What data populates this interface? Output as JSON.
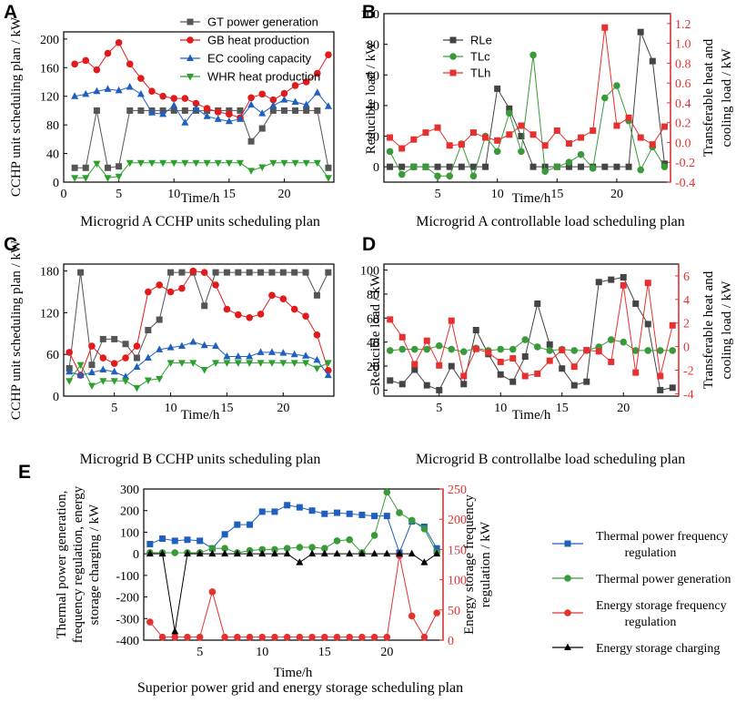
{
  "chart_data": [
    {
      "id": "A",
      "type": "line",
      "label": "A",
      "title": "Microgrid A CCHP units scheduling plan",
      "xlabel": "Time/h",
      "ylabel": "CCHP unit scheduling plan / kW",
      "xlim": [
        0,
        24.5
      ],
      "ylim": [
        0,
        210
      ],
      "xticks": [
        0,
        5,
        10,
        15,
        20
      ],
      "yticks": [
        0,
        40,
        80,
        120,
        160,
        200
      ],
      "legend_position": "top-center",
      "x": [
        1,
        2,
        3,
        4,
        5,
        6,
        7,
        8,
        9,
        10,
        11,
        12,
        13,
        14,
        15,
        16,
        17,
        18,
        19,
        20,
        21,
        22,
        23,
        24
      ],
      "series": [
        {
          "name": "GT power generation",
          "color": "#555555",
          "marker": "square",
          "axis": "left",
          "values": [
            20,
            20,
            100,
            20,
            22,
            100,
            100,
            100,
            100,
            100,
            100,
            100,
            100,
            100,
            100,
            100,
            57,
            75,
            100,
            100,
            100,
            100,
            100,
            20
          ]
        },
        {
          "name": "GB heat production",
          "color": "#e31a1c",
          "marker": "circle",
          "axis": "left",
          "values": [
            165,
            170,
            157,
            180,
            195,
            165,
            145,
            127,
            120,
            117,
            117,
            110,
            103,
            98,
            95,
            90,
            118,
            123,
            115,
            124,
            135,
            140,
            152,
            178
          ]
        },
        {
          "name": "EC cooling capacity",
          "color": "#1f5fbf",
          "marker": "triangle-up",
          "axis": "left",
          "values": [
            120,
            123,
            127,
            130,
            128,
            133,
            123,
            97,
            95,
            107,
            83,
            103,
            92,
            88,
            85,
            88,
            108,
            96,
            107,
            115,
            112,
            108,
            125,
            106
          ]
        },
        {
          "name": "WHR heat production",
          "color": "#2ca02c",
          "marker": "triangle-down",
          "axis": "left",
          "values": [
            6,
            6,
            26,
            6,
            8,
            27,
            27,
            27,
            27,
            27,
            27,
            27,
            27,
            27,
            27,
            27,
            16,
            21,
            27,
            27,
            27,
            27,
            27,
            6
          ]
        }
      ]
    },
    {
      "id": "B",
      "type": "line",
      "label": "B",
      "title": "Microgrid A controllable load scheduling plan",
      "xlabel": "Time/h",
      "ylabel": "Reducible load / kW",
      "y2label": "Transferable heat and cooling load / kW",
      "xlim": [
        0.5,
        24.5
      ],
      "ylim": [
        -10,
        100
      ],
      "y2lim": [
        -0.4,
        1.3
      ],
      "xticks": [
        5,
        10,
        15,
        20
      ],
      "yticks": [
        0,
        20,
        40,
        60,
        80,
        100
      ],
      "y2ticks": [
        -0.4,
        -0.2,
        0.0,
        0.2,
        0.4,
        0.6,
        0.8,
        1.0,
        1.2
      ],
      "y2ticklabels": [
        "-0.4",
        "-0.2",
        "0.0",
        "0.2",
        "0.4",
        "0.6",
        "0.8",
        "1.0",
        "1.2"
      ],
      "legend_position": "top-left",
      "x": [
        1,
        2,
        3,
        4,
        5,
        6,
        7,
        8,
        9,
        10,
        11,
        12,
        13,
        14,
        15,
        16,
        17,
        18,
        19,
        20,
        21,
        22,
        23,
        24
      ],
      "series": [
        {
          "name": "RLe",
          "color": "#444444",
          "marker": "square",
          "axis": "left",
          "values": [
            0,
            0,
            0,
            0,
            0,
            0,
            0,
            0,
            0,
            51,
            38,
            20,
            0,
            0,
            0,
            0,
            0,
            0,
            0,
            0,
            0,
            88,
            69,
            2
          ]
        },
        {
          "name": "TLc",
          "color": "#3a9a3a",
          "marker": "circle",
          "axis": "left",
          "values": [
            10,
            -5,
            0,
            0,
            -6,
            -6,
            15,
            -6,
            20,
            10,
            35,
            10,
            73,
            -3,
            0,
            3,
            8,
            -1,
            45,
            53,
            30,
            -2,
            13,
            0
          ]
        },
        {
          "name": "TLh",
          "color": "#e63030",
          "marker": "square",
          "axis": "right",
          "values": [
            0.05,
            -0.06,
            0.03,
            0.1,
            0.15,
            -0.03,
            -0.02,
            0.1,
            0.05,
            0.02,
            0.08,
            0.17,
            0.08,
            -0.03,
            0.12,
            -0.01,
            0.05,
            0.12,
            1.16,
            0.17,
            0.25,
            0.05,
            -0.02,
            0.16
          ]
        }
      ]
    },
    {
      "id": "C",
      "type": "line",
      "label": "C",
      "title": "Microgrid B CCHP units scheduling plan",
      "xlabel": "Time/h",
      "ylabel": "CCHP unit scheduling plan / kW",
      "xlim": [
        0.5,
        24.5
      ],
      "ylim": [
        0,
        190
      ],
      "xticks": [
        5,
        10,
        15,
        20
      ],
      "yticks": [
        0,
        60,
        120,
        180
      ],
      "x": [
        1,
        2,
        3,
        4,
        5,
        6,
        7,
        8,
        9,
        10,
        11,
        12,
        13,
        14,
        15,
        16,
        17,
        18,
        19,
        20,
        21,
        22,
        23,
        24
      ],
      "series": [
        {
          "name": "GT power generation",
          "color": "#555555",
          "marker": "square",
          "axis": "left",
          "values": [
            40,
            178,
            45,
            82,
            82,
            75,
            55,
            95,
            110,
            178,
            178,
            178,
            130,
            178,
            178,
            178,
            178,
            178,
            178,
            178,
            178,
            178,
            145,
            178
          ]
        },
        {
          "name": "GB heat production",
          "color": "#e31a1c",
          "marker": "circle",
          "axis": "left",
          "values": [
            63,
            30,
            72,
            55,
            47,
            55,
            72,
            150,
            160,
            150,
            155,
            180,
            178,
            160,
            125,
            117,
            113,
            118,
            145,
            140,
            125,
            115,
            88,
            37
          ]
        },
        {
          "name": "EC cooling capacity",
          "color": "#1f5fbf",
          "marker": "triangle-up",
          "axis": "left",
          "values": [
            35,
            30,
            34,
            38,
            35,
            28,
            42,
            55,
            67,
            70,
            72,
            78,
            73,
            72,
            57,
            57,
            57,
            63,
            63,
            62,
            60,
            58,
            52,
            30
          ]
        },
        {
          "name": "WHR heat production",
          "color": "#2ca02c",
          "marker": "triangle-down",
          "axis": "left",
          "values": [
            22,
            45,
            15,
            22,
            22,
            22,
            12,
            23,
            25,
            48,
            48,
            48,
            38,
            48,
            48,
            48,
            48,
            48,
            48,
            48,
            48,
            48,
            40,
            48
          ]
        }
      ]
    },
    {
      "id": "D",
      "type": "line",
      "label": "D",
      "title": "Microgrid B controllalbe load scheduling plan",
      "xlabel": "Time/h",
      "ylabel": "Reducible load / kW",
      "y2label": "Transferable heat and cooling load / kW",
      "xlim": [
        0.5,
        24.5
      ],
      "ylim": [
        -5,
        105
      ],
      "y2lim": [
        -4.2,
        7
      ],
      "xticks": [
        5,
        10,
        15,
        20
      ],
      "yticks": [
        0,
        20,
        40,
        60,
        80,
        100
      ],
      "y2ticks": [
        -4,
        -2,
        0,
        2,
        4,
        6
      ],
      "y2ticklabels": [
        "-4",
        "-2",
        "0",
        "2",
        "4",
        "6"
      ],
      "x": [
        1,
        2,
        3,
        4,
        5,
        6,
        7,
        8,
        9,
        10,
        11,
        12,
        13,
        14,
        15,
        16,
        17,
        18,
        19,
        20,
        21,
        22,
        23,
        24
      ],
      "series": [
        {
          "name": "RLe",
          "color": "#444444",
          "marker": "square",
          "axis": "left",
          "values": [
            8,
            5,
            17,
            4,
            0,
            20,
            5,
            50,
            30,
            13,
            7,
            28,
            72,
            38,
            18,
            4,
            7,
            90,
            92,
            94,
            72,
            55,
            0,
            2
          ]
        },
        {
          "name": "TLc",
          "color": "#3a9a3a",
          "marker": "circle",
          "axis": "left",
          "values": [
            33,
            34,
            34,
            34,
            37,
            34,
            32,
            35,
            33,
            34,
            34,
            42,
            36,
            33,
            34,
            33,
            33,
            36,
            42,
            40,
            33,
            33,
            33,
            33
          ]
        },
        {
          "name": "TLh",
          "color": "#e63030",
          "marker": "square",
          "axis": "right",
          "values": [
            2.3,
            0.8,
            -1.5,
            0.5,
            -1.6,
            2.2,
            -2.5,
            -0.2,
            -0.5,
            -1.3,
            -1.0,
            -2.5,
            -2.3,
            -1.2,
            -0.3,
            -1.7,
            -0.3,
            -0.4,
            -1.3,
            5.2,
            -2.2,
            5.4,
            -2.5,
            1.8
          ]
        }
      ]
    },
    {
      "id": "E",
      "type": "line",
      "label": "E",
      "title": "Superior power grid and energy storage scheduling plan",
      "xlabel": "Time/h",
      "ylabel": "Thermal power generation, frequency regulation, energy storage charging / kW",
      "ylabel_lines": [
        "Thermal power generation,",
        "frequency regulation, energy",
        "storage charging / kW"
      ],
      "y2label": "Energy storage frequency regulation / kW",
      "y2label_lines": [
        "Energy storage frequency",
        "regulation / kW"
      ],
      "xlim": [
        0.5,
        24.5
      ],
      "ylim": [
        -400,
        300
      ],
      "y2lim": [
        0,
        250
      ],
      "xticks": [
        5,
        10,
        15,
        20
      ],
      "yticks": [
        -400,
        -300,
        -200,
        -100,
        0,
        100,
        200,
        300
      ],
      "y2ticks": [
        0,
        50,
        100,
        150,
        200,
        250
      ],
      "x": [
        1,
        2,
        3,
        4,
        5,
        6,
        7,
        8,
        9,
        10,
        11,
        12,
        13,
        14,
        15,
        16,
        17,
        18,
        19,
        20,
        21,
        22,
        23,
        24
      ],
      "legend_position": "right",
      "series": [
        {
          "name": "Thermal power frequency regulation",
          "color": "#1f5fbf",
          "marker": "square",
          "axis": "left",
          "values": [
            45,
            70,
            60,
            65,
            60,
            25,
            90,
            135,
            135,
            195,
            195,
            225,
            215,
            200,
            185,
            190,
            185,
            180,
            175,
            175,
            5,
            150,
            125,
            25
          ]
        },
        {
          "name": "Thermal power generation",
          "color": "#3a9a3a",
          "marker": "circle",
          "axis": "left",
          "values": [
            5,
            5,
            5,
            5,
            5,
            25,
            25,
            5,
            15,
            20,
            20,
            25,
            30,
            30,
            25,
            60,
            65,
            5,
            85,
            285,
            190,
            155,
            115,
            5
          ]
        },
        {
          "name": "Energy storage frequency regulation",
          "color": "#e63030",
          "marker": "circle",
          "axis": "right",
          "values": [
            30,
            5,
            5,
            5,
            5,
            80,
            5,
            5,
            5,
            5,
            5,
            5,
            5,
            5,
            5,
            5,
            5,
            5,
            5,
            5,
            140,
            40,
            5,
            45
          ]
        },
        {
          "name": "Energy storage charging",
          "color": "#000000",
          "marker": "triangle-up",
          "axis": "left",
          "values": [
            0,
            0,
            -360,
            0,
            0,
            0,
            0,
            0,
            0,
            0,
            0,
            0,
            -40,
            0,
            0,
            0,
            0,
            0,
            0,
            0,
            0,
            0,
            -40,
            0
          ]
        }
      ]
    }
  ]
}
